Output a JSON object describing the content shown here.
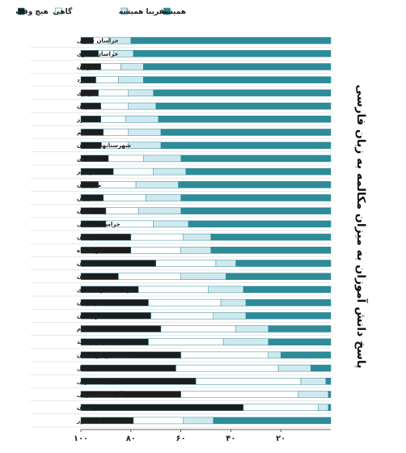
{
  "chart_data": {
    "type": "bar",
    "orientation": "horizontal",
    "stacked": true,
    "ylabel": "پاسخ دانش آموزان به میزان مکالمه به زبان فارسی",
    "xlim": [
      0,
      100
    ],
    "xticks": [
      "۲۰",
      "۴۰",
      "۶۰",
      "۸۰",
      "۱۰۰"
    ],
    "xtick_values": [
      20,
      40,
      60,
      80,
      100
    ],
    "legend_position": "top",
    "categories": [
      "خراسان جنوبی",
      "خراسان رضوی",
      "کرمان",
      "یزد",
      "مرکزی",
      "اصفهان",
      "البرز",
      "قم",
      "شهرستانهای تهران",
      "فارس",
      "بوشهر",
      "مازندران",
      "قزوین",
      "گیلان",
      "خراسان شمالی",
      "لرستان",
      "کرمانشاه",
      "گلستان",
      "زنجان",
      "چهارمحال و بختیاری",
      "هرمزگان",
      "خوزستان",
      "ایلام",
      "کهگیلویه و بویراحمد",
      "سیستان و بلوچستان",
      "اردبیل",
      "آذربایجان غربی",
      "آذربایجان شرقی",
      "کردستان",
      "کل کشور"
    ],
    "series": [
      {
        "name": "همیشه",
        "color": "#2e8b98",
        "values": [
          80,
          79,
          75,
          75,
          71,
          70,
          69,
          68,
          68,
          60,
          58,
          61,
          60,
          60,
          57,
          48,
          48,
          38,
          42,
          35,
          34,
          34,
          25,
          25,
          20,
          8,
          2,
          1,
          1,
          47
        ]
      },
      {
        "name": "تقریبا همیشه",
        "color": "#cfe9ef",
        "values": [
          9,
          8,
          9,
          10,
          10,
          11,
          13,
          13,
          13,
          15,
          13,
          17,
          14,
          17,
          14,
          11,
          12,
          8,
          18,
          14,
          10,
          13,
          13,
          18,
          5,
          13,
          10,
          12,
          4,
          12
        ]
      },
      {
        "name": "گاهی",
        "color": "#ffffff",
        "values": [
          6,
          6,
          8,
          9,
          12,
          11,
          10,
          10,
          11,
          14,
          16,
          15,
          17,
          13,
          19,
          21,
          20,
          24,
          25,
          28,
          29,
          25,
          30,
          30,
          35,
          41,
          42,
          47,
          30,
          20
        ]
      },
      {
        "name": "هیچ وقت",
        "color": "#1c1c1c",
        "values": [
          5,
          7,
          8,
          6,
          7,
          8,
          8,
          9,
          8,
          11,
          13,
          7,
          9,
          10,
          10,
          20,
          20,
          30,
          15,
          23,
          27,
          28,
          32,
          27,
          40,
          38,
          46,
          40,
          65,
          21
        ]
      }
    ]
  }
}
